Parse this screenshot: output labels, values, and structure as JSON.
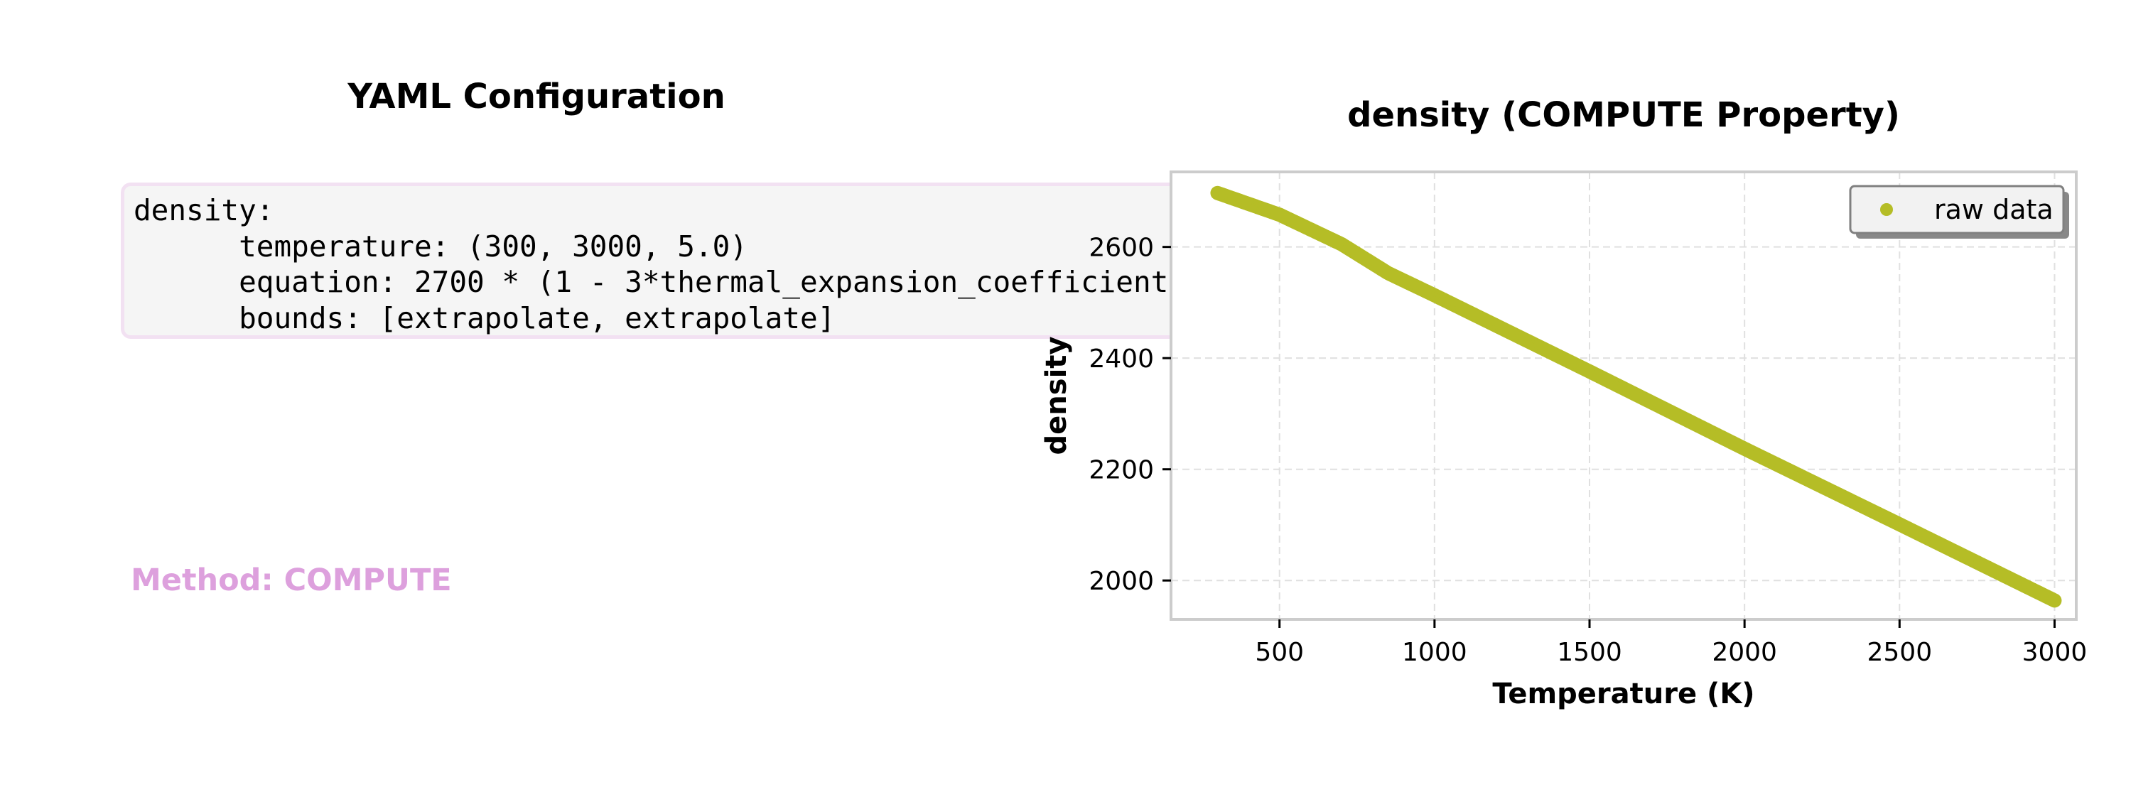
{
  "left_panel": {
    "title": "YAML Configuration",
    "yaml_lines": [
      "density:",
      "      temperature: (300, 3000, 5.0)",
      "      equation: 2700 * (1 - 3*thermal_expansion_coefficient",
      "      bounds: [extrapolate, extrapolate]"
    ],
    "method_label": "Method: COMPUTE",
    "method_color": "#dda0dd"
  },
  "chart_data": {
    "type": "scatter",
    "title": "density (COMPUTE Property)",
    "xlabel": "Temperature (K)",
    "ylabel": "density",
    "xlim": [
      150,
      3070
    ],
    "ylim": [
      1930,
      2735
    ],
    "xticks": [
      500,
      1000,
      1500,
      2000,
      2500,
      3000
    ],
    "yticks": [
      2000,
      2200,
      2400,
      2600
    ],
    "xtick_labels": [
      "500",
      "1000",
      "1500",
      "2000",
      "2500",
      "3000"
    ],
    "ytick_labels": [
      "2000",
      "2200",
      "2400",
      "2600"
    ],
    "grid": true,
    "legend": "top-right",
    "series": [
      {
        "name": "raw data",
        "color": "#b5bd26",
        "x_start": 300,
        "x_end": 3000,
        "x_step": 5.0,
        "keypoints": [
          [
            300,
            2697
          ],
          [
            500,
            2658
          ],
          [
            700,
            2605
          ],
          [
            850,
            2553
          ],
          [
            1000,
            2513
          ],
          [
            1500,
            2376
          ],
          [
            2000,
            2237
          ],
          [
            2500,
            2101
          ],
          [
            3000,
            1964
          ]
        ]
      }
    ]
  }
}
